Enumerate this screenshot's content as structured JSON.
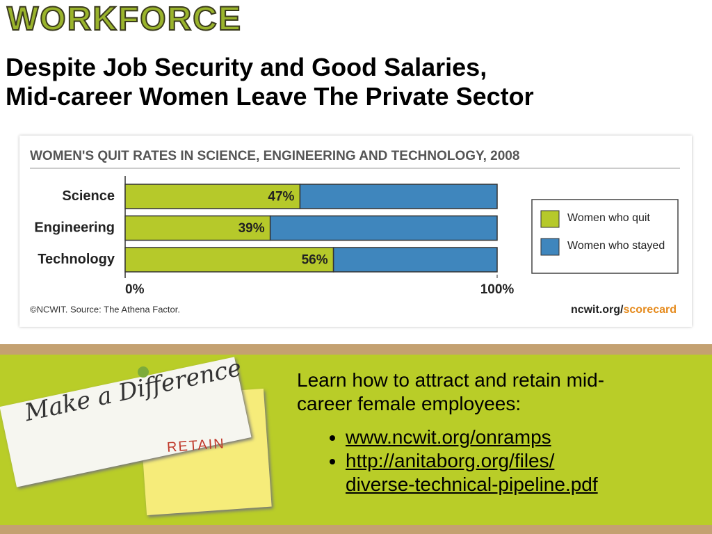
{
  "header": {
    "logo": "WORKFORCE",
    "title_lines": [
      "Despite Job Security and Good Salaries,",
      "Mid-career Women Leave The Private Sector"
    ]
  },
  "chart_data": {
    "type": "stacked-bar-horizontal",
    "title": "WOMEN'S QUIT RATES IN SCIENCE, ENGINEERING AND TECHNOLOGY, 2008",
    "categories": [
      "Science",
      "Engineering",
      "Technology"
    ],
    "series": [
      {
        "name": "Women who quit",
        "color": "#b6c92a",
        "values": [
          47,
          39,
          56
        ],
        "value_labels": [
          "47%",
          "39%",
          "56%"
        ]
      },
      {
        "name": "Women who stayed",
        "color": "#3f86bd",
        "values": [
          53,
          61,
          44
        ]
      }
    ],
    "xlim": [
      0,
      100
    ],
    "xticks": [
      {
        "value": 0,
        "label": "0%"
      },
      {
        "value": 100,
        "label": "100%"
      }
    ],
    "legend": "right",
    "source": "©NCWIT. Source: The Athena Factor.",
    "credit": [
      "ncwit.org/",
      "scorecard"
    ]
  },
  "note": {
    "heading": "Make a Difference",
    "tag": "RETAIN"
  },
  "body": {
    "intro": "Learn how to attract and retain mid-career female employees:",
    "links": [
      [
        "www.ncwit.org/onramps"
      ],
      [
        "http://anitaborg.org/files/",
        "diverse-technical-pipeline.pdf"
      ]
    ]
  }
}
